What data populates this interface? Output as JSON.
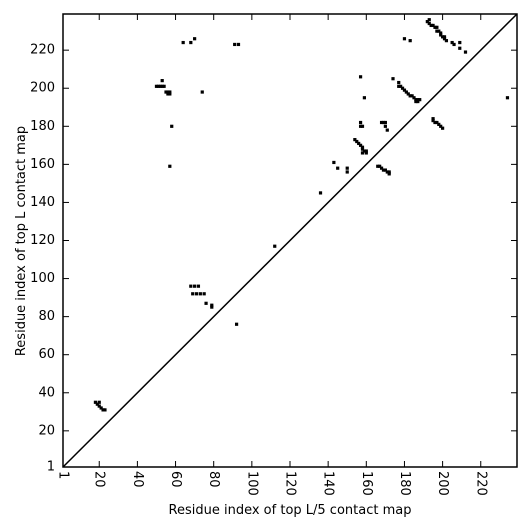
{
  "chart_data": {
    "type": "scatter",
    "xlabel": "Residue index of top L/5 contact map",
    "ylabel": "Residue index of top L contact map",
    "xlim": [
      1,
      239
    ],
    "ylim": [
      1,
      239
    ],
    "xticks": [
      1,
      20,
      40,
      60,
      80,
      100,
      120,
      140,
      160,
      180,
      200,
      220
    ],
    "yticks": [
      1,
      20,
      40,
      60,
      80,
      100,
      120,
      140,
      160,
      180,
      200,
      220
    ],
    "diagonal": true,
    "marker": "square",
    "series": [
      {
        "color": "#000000",
        "x": [
          18,
          19,
          20,
          21,
          22,
          23,
          20,
          50,
          51,
          52,
          53,
          54,
          55,
          56,
          57,
          57,
          56,
          53,
          58,
          57,
          64,
          68,
          70,
          74,
          91,
          93,
          68,
          70,
          72,
          69,
          71,
          73,
          75,
          76,
          79,
          79,
          92,
          112,
          136,
          143,
          145,
          150,
          150,
          154,
          155,
          156,
          157,
          158,
          158,
          159,
          160,
          158,
          160,
          157,
          157,
          158,
          157,
          159,
          166,
          167,
          168,
          169,
          170,
          171,
          172,
          172,
          168,
          169,
          170,
          170,
          171,
          174,
          177,
          177,
          178,
          179,
          180,
          181,
          182,
          183,
          184,
          185,
          186,
          187,
          186,
          187,
          188,
          180,
          183,
          192,
          193,
          193,
          194,
          195,
          196,
          197,
          197,
          198,
          199,
          199,
          200,
          201,
          201,
          202,
          195,
          195,
          196,
          197,
          198,
          199,
          200,
          205,
          206,
          209,
          209,
          212,
          234
        ],
        "y": [
          35,
          34,
          33,
          32,
          31,
          31,
          35,
          201,
          201,
          201,
          201,
          201,
          198,
          198,
          198,
          197,
          197,
          204,
          180,
          159,
          224,
          224,
          226,
          198,
          223,
          223,
          96,
          96,
          96,
          92,
          92,
          92,
          92,
          87,
          86,
          85,
          76,
          117,
          145,
          161,
          158,
          158,
          156,
          173,
          172,
          171,
          170,
          169,
          168,
          167,
          167,
          166,
          166,
          182,
          180,
          180,
          206,
          195,
          159,
          159,
          158,
          157,
          157,
          156,
          156,
          155,
          182,
          182,
          182,
          180,
          178,
          205,
          203,
          201,
          201,
          200,
          199,
          198,
          197,
          196,
          196,
          195,
          194,
          194,
          193,
          193,
          194,
          226,
          225,
          235,
          236,
          234,
          233,
          233,
          232,
          232,
          230,
          230,
          229,
          228,
          227,
          227,
          226,
          225,
          184,
          183,
          182,
          182,
          181,
          180,
          179,
          224,
          223,
          224,
          221,
          219,
          195
        ]
      }
    ]
  }
}
